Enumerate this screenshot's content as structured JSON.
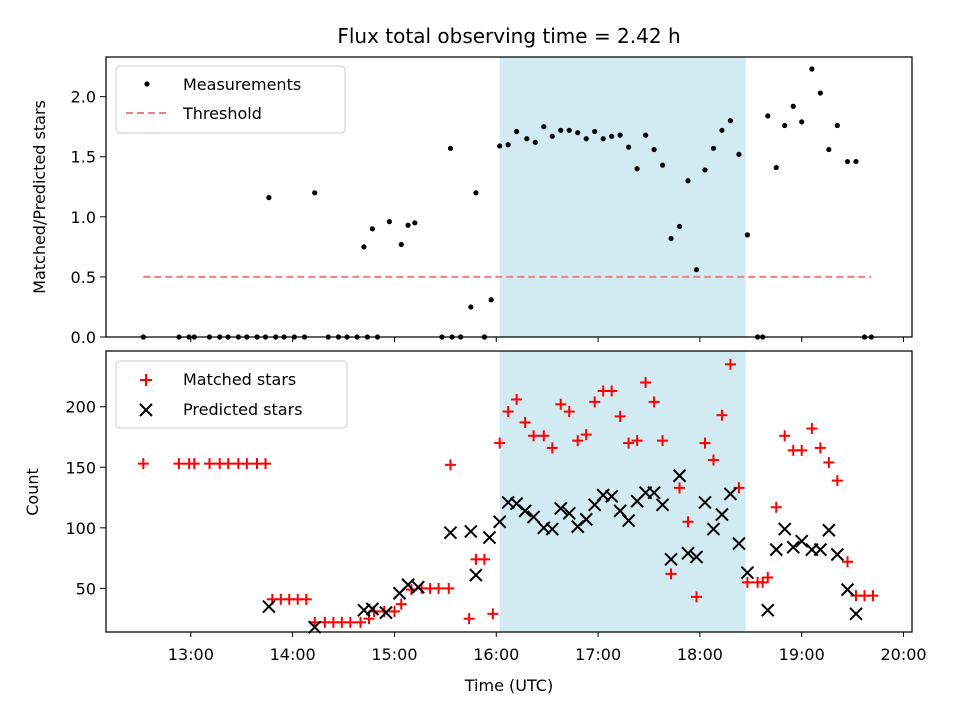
{
  "chart_data": [
    {
      "type": "scatter",
      "title": "Flux total observing time = 2.42 h",
      "xlabel": "",
      "ylabel": "Matched/Predicted stars",
      "x_unit": "hours UTC",
      "xlim": [
        "12:10",
        "20:05"
      ],
      "ylim": [
        0,
        2.33
      ],
      "yticks": [
        "0.0",
        "0.5",
        "1.0",
        "1.5",
        "2.0"
      ],
      "grid": false,
      "legend_position": "top-left",
      "highlight_band": {
        "x_start": "16:02",
        "x_end": "18:27",
        "color": "#add8e6"
      },
      "series": [
        {
          "name": "Measurements",
          "color": "#000000",
          "marker": "dot",
          "points": [
            [
              "12:32",
              0.0
            ],
            [
              "12:53",
              0.0
            ],
            [
              "12:59",
              0.0
            ],
            [
              "13:02",
              0.0
            ],
            [
              "13:11",
              0.0
            ],
            [
              "13:17",
              0.0
            ],
            [
              "13:22",
              0.0
            ],
            [
              "13:28",
              0.0
            ],
            [
              "13:33",
              0.0
            ],
            [
              "13:39",
              0.0
            ],
            [
              "13:44",
              0.0
            ],
            [
              "13:50",
              0.0
            ],
            [
              "13:46",
              1.16
            ],
            [
              "13:55",
              0.0
            ],
            [
              "14:01",
              0.0
            ],
            [
              "14:07",
              0.0
            ],
            [
              "14:13",
              1.2
            ],
            [
              "14:21",
              0.0
            ],
            [
              "14:27",
              0.0
            ],
            [
              "14:32",
              0.0
            ],
            [
              "14:38",
              0.0
            ],
            [
              "14:44",
              0.0
            ],
            [
              "14:50",
              0.0
            ],
            [
              "14:42",
              0.75
            ],
            [
              "14:47",
              0.9
            ],
            [
              "14:57",
              0.96
            ],
            [
              "15:04",
              0.77
            ],
            [
              "15:08",
              0.93
            ],
            [
              "15:12",
              0.95
            ],
            [
              "15:28",
              0.0
            ],
            [
              "15:34",
              0.0
            ],
            [
              "15:39",
              0.0
            ],
            [
              "15:33",
              1.57
            ],
            [
              "15:45",
              0.25
            ],
            [
              "15:48",
              1.2
            ],
            [
              "15:53",
              0.0
            ],
            [
              "15:57",
              0.31
            ],
            [
              "16:02",
              1.59
            ],
            [
              "16:07",
              1.6
            ],
            [
              "16:12",
              1.71
            ],
            [
              "16:18",
              1.65
            ],
            [
              "16:23",
              1.62
            ],
            [
              "16:28",
              1.75
            ],
            [
              "16:33",
              1.67
            ],
            [
              "16:38",
              1.72
            ],
            [
              "16:43",
              1.72
            ],
            [
              "16:48",
              1.7
            ],
            [
              "16:53",
              1.65
            ],
            [
              "16:58",
              1.71
            ],
            [
              "17:03",
              1.65
            ],
            [
              "17:08",
              1.67
            ],
            [
              "17:13",
              1.68
            ],
            [
              "17:18",
              1.58
            ],
            [
              "17:23",
              1.4
            ],
            [
              "17:28",
              1.68
            ],
            [
              "17:33",
              1.56
            ],
            [
              "17:38",
              1.43
            ],
            [
              "17:43",
              0.82
            ],
            [
              "17:48",
              0.92
            ],
            [
              "17:53",
              1.3
            ],
            [
              "17:58",
              0.56
            ],
            [
              "18:03",
              1.39
            ],
            [
              "18:08",
              1.57
            ],
            [
              "18:13",
              1.72
            ],
            [
              "18:18",
              1.8
            ],
            [
              "18:23",
              1.52
            ],
            [
              "18:28",
              0.85
            ],
            [
              "18:34",
              0.0
            ],
            [
              "18:37",
              0.0
            ],
            [
              "18:40",
              1.84
            ],
            [
              "18:45",
              1.41
            ],
            [
              "18:50",
              1.76
            ],
            [
              "18:55",
              1.92
            ],
            [
              "19:00",
              1.79
            ],
            [
              "19:06",
              2.23
            ],
            [
              "19:11",
              2.03
            ],
            [
              "19:16",
              1.56
            ],
            [
              "19:21",
              1.76
            ],
            [
              "19:27",
              1.46
            ],
            [
              "19:32",
              1.46
            ],
            [
              "19:37",
              0.0
            ],
            [
              "19:41",
              0.0
            ]
          ]
        },
        {
          "name": "Threshold",
          "color": "#f08080",
          "style": "dashed",
          "points": [
            [
              "12:32",
              0.5
            ],
            [
              "19:41",
              0.5
            ]
          ]
        }
      ]
    },
    {
      "type": "scatter",
      "title": "",
      "xlabel": "Time (UTC)",
      "ylabel": "Count",
      "x_unit": "hours UTC",
      "xlim": [
        "12:10",
        "20:05"
      ],
      "ylim": [
        14,
        246
      ],
      "xticks": [
        "13:00",
        "14:00",
        "15:00",
        "16:00",
        "17:00",
        "18:00",
        "19:00",
        "20:00"
      ],
      "yticks": [
        "50",
        "100",
        "150",
        "200"
      ],
      "grid": false,
      "legend_position": "top-left",
      "highlight_band": {
        "x_start": "16:02",
        "x_end": "18:27",
        "color": "#add8e6"
      },
      "series": [
        {
          "name": "Matched stars",
          "color": "#ff0000",
          "marker": "plus",
          "points": [
            [
              "12:32",
              153
            ],
            [
              "12:53",
              153
            ],
            [
              "12:59",
              153
            ],
            [
              "13:02",
              153
            ],
            [
              "13:11",
              153
            ],
            [
              "13:17",
              153
            ],
            [
              "13:22",
              153
            ],
            [
              "13:28",
              153
            ],
            [
              "13:33",
              153
            ],
            [
              "13:39",
              153
            ],
            [
              "13:44",
              153
            ],
            [
              "13:48",
              41
            ],
            [
              "13:53",
              41
            ],
            [
              "13:58",
              41
            ],
            [
              "14:03",
              41
            ],
            [
              "14:08",
              41
            ],
            [
              "14:13",
              22
            ],
            [
              "14:19",
              22
            ],
            [
              "14:24",
              22
            ],
            [
              "14:29",
              22
            ],
            [
              "14:34",
              22
            ],
            [
              "14:40",
              22
            ],
            [
              "14:45",
              25
            ],
            [
              "14:48",
              31
            ],
            [
              "14:54",
              31
            ],
            [
              "15:00",
              31
            ],
            [
              "15:04",
              37
            ],
            [
              "15:10",
              49
            ],
            [
              "15:16",
              50
            ],
            [
              "15:21",
              50
            ],
            [
              "15:26",
              50
            ],
            [
              "15:32",
              50
            ],
            [
              "15:33",
              152
            ],
            [
              "15:44",
              25
            ],
            [
              "15:48",
              74
            ],
            [
              "15:53",
              74
            ],
            [
              "15:58",
              29
            ],
            [
              "16:02",
              170
            ],
            [
              "16:07",
              196
            ],
            [
              "16:12",
              206
            ],
            [
              "16:17",
              187
            ],
            [
              "16:22",
              176
            ],
            [
              "16:28",
              176
            ],
            [
              "16:33",
              166
            ],
            [
              "16:38",
              202
            ],
            [
              "16:43",
              196
            ],
            [
              "16:48",
              172
            ],
            [
              "16:53",
              177
            ],
            [
              "16:58",
              204
            ],
            [
              "17:03",
              213
            ],
            [
              "17:08",
              213
            ],
            [
              "17:13",
              192
            ],
            [
              "17:18",
              170
            ],
            [
              "17:23",
              172
            ],
            [
              "17:28",
              220
            ],
            [
              "17:33",
              204
            ],
            [
              "17:38",
              172
            ],
            [
              "17:43",
              62
            ],
            [
              "17:48",
              133
            ],
            [
              "17:53",
              105
            ],
            [
              "17:58",
              43
            ],
            [
              "18:03",
              170
            ],
            [
              "18:08",
              156
            ],
            [
              "18:13",
              193
            ],
            [
              "18:18",
              235
            ],
            [
              "18:23",
              133
            ],
            [
              "18:28",
              55
            ],
            [
              "18:34",
              55
            ],
            [
              "18:37",
              55
            ],
            [
              "18:40",
              59
            ],
            [
              "18:45",
              117
            ],
            [
              "18:50",
              176
            ],
            [
              "18:55",
              164
            ],
            [
              "19:00",
              164
            ],
            [
              "19:06",
              182
            ],
            [
              "19:11",
              166
            ],
            [
              "19:16",
              154
            ],
            [
              "19:21",
              139
            ],
            [
              "19:27",
              72
            ],
            [
              "19:32",
              44
            ],
            [
              "19:37",
              44
            ],
            [
              "19:42",
              44
            ]
          ]
        },
        {
          "name": "Predicted stars",
          "color": "#000000",
          "marker": "x",
          "points": [
            [
              "13:46",
              35
            ],
            [
              "14:13",
              18
            ],
            [
              "14:42",
              32
            ],
            [
              "14:47",
              33
            ],
            [
              "14:55",
              30
            ],
            [
              "15:03",
              46
            ],
            [
              "15:08",
              53
            ],
            [
              "15:14",
              51
            ],
            [
              "15:33",
              96
            ],
            [
              "15:45",
              97
            ],
            [
              "15:48",
              61
            ],
            [
              "15:56",
              92
            ],
            [
              "16:02",
              105
            ],
            [
              "16:07",
              121
            ],
            [
              "16:12",
              120
            ],
            [
              "16:17",
              114
            ],
            [
              "16:22",
              109
            ],
            [
              "16:28",
              100
            ],
            [
              "16:33",
              99
            ],
            [
              "16:38",
              116
            ],
            [
              "16:43",
              112
            ],
            [
              "16:48",
              101
            ],
            [
              "16:53",
              107
            ],
            [
              "16:58",
              119
            ],
            [
              "17:03",
              127
            ],
            [
              "17:08",
              126
            ],
            [
              "17:13",
              114
            ],
            [
              "17:18",
              106
            ],
            [
              "17:23",
              122
            ],
            [
              "17:28",
              129
            ],
            [
              "17:33",
              129
            ],
            [
              "17:38",
              119
            ],
            [
              "17:43",
              74
            ],
            [
              "17:48",
              143
            ],
            [
              "17:53",
              79
            ],
            [
              "17:58",
              76
            ],
            [
              "18:03",
              121
            ],
            [
              "18:08",
              99
            ],
            [
              "18:13",
              111
            ],
            [
              "18:18",
              128
            ],
            [
              "18:23",
              87
            ],
            [
              "18:28",
              63
            ],
            [
              "18:40",
              32
            ],
            [
              "18:45",
              82
            ],
            [
              "18:50",
              99
            ],
            [
              "18:55",
              84
            ],
            [
              "19:00",
              89
            ],
            [
              "19:06",
              82
            ],
            [
              "19:11",
              82
            ],
            [
              "19:16",
              98
            ],
            [
              "19:21",
              78
            ],
            [
              "19:27",
              49
            ],
            [
              "19:32",
              29
            ]
          ]
        }
      ]
    }
  ]
}
